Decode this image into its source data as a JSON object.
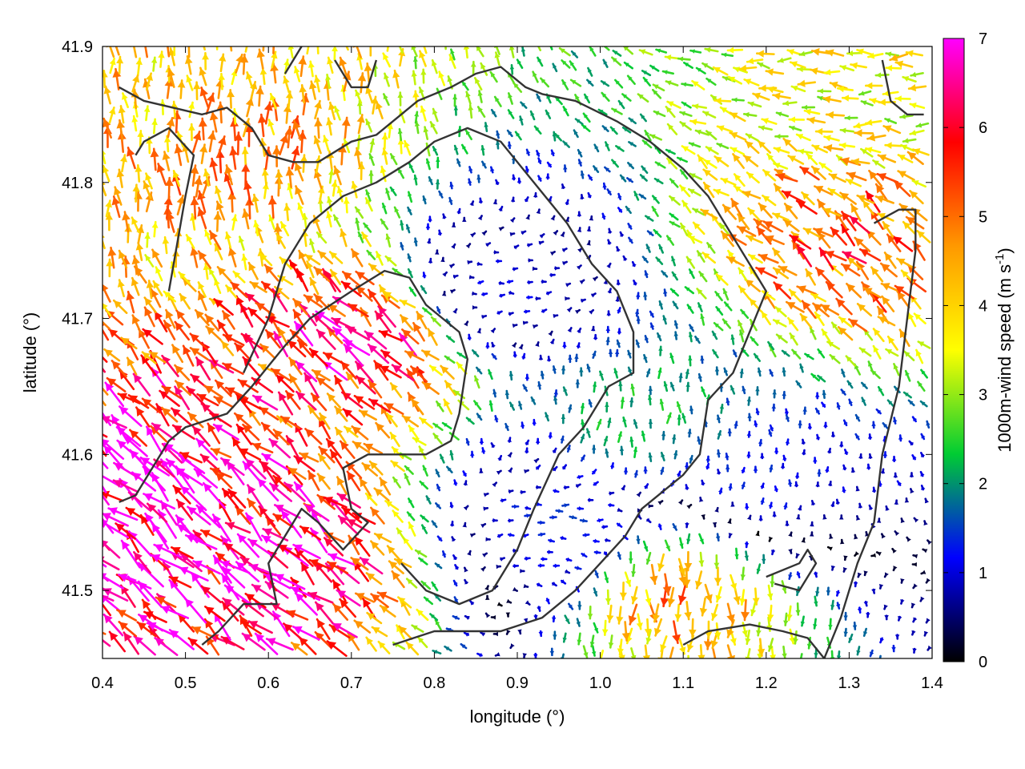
{
  "chart_data": {
    "type": "vector-field",
    "xlabel": "longitude (°)",
    "ylabel": "latitude (°)",
    "xlim": [
      0.4,
      1.4
    ],
    "ylim": [
      41.45,
      41.9
    ],
    "xticks": [
      "0.4",
      "0.5",
      "0.6",
      "0.7",
      "0.8",
      "0.9",
      "1.0",
      "1.1",
      "1.2",
      "1.3",
      "1.4"
    ],
    "yticks": [
      "41.5",
      "41.6",
      "41.7",
      "41.8",
      "41.9"
    ],
    "colorbar": {
      "label_main": "1000m-wind speed (m s",
      "label_sup": "-1",
      "label_end": ")",
      "range": [
        0,
        7
      ],
      "ticks": [
        "0",
        "1",
        "2",
        "3",
        "4",
        "5",
        "6",
        "7"
      ],
      "palette": [
        "#000000",
        "#0000ff",
        "#00cc33",
        "#ffff00",
        "#ff9900",
        "#ff0000",
        "#ff00ff"
      ]
    },
    "vector_grid": {
      "nx": 60,
      "ny": 38,
      "arrow_length_per_ms": 0.0055
    },
    "wind_field": {
      "description_regions": [
        {
          "lon": 0.47,
          "lat": 41.55,
          "speed": 7.0,
          "dir_to": "NW"
        },
        {
          "lon": 0.62,
          "lat": 41.52,
          "speed": 6.5,
          "dir_to": "NW"
        },
        {
          "lon": 0.72,
          "lat": 41.68,
          "speed": 6.0,
          "dir_to": "NW"
        },
        {
          "lon": 0.55,
          "lat": 41.82,
          "speed": 4.5,
          "dir_to": "N"
        },
        {
          "lon": 0.88,
          "lat": 41.72,
          "speed": 1.0,
          "dir_to": "E"
        },
        {
          "lon": 0.95,
          "lat": 41.55,
          "speed": 1.3,
          "dir_to": "E"
        },
        {
          "lon": 1.05,
          "lat": 41.62,
          "speed": 2.2,
          "dir_to": "N"
        },
        {
          "lon": 1.2,
          "lat": 41.58,
          "speed": 1.2,
          "dir_to": "N"
        },
        {
          "lon": 1.1,
          "lat": 41.5,
          "speed": 4.5,
          "dir_to": "S"
        },
        {
          "lon": 1.3,
          "lat": 41.75,
          "speed": 5.0,
          "dir_to": "NW"
        },
        {
          "lon": 1.35,
          "lat": 41.88,
          "speed": 3.5,
          "dir_to": "W"
        },
        {
          "lon": 0.45,
          "lat": 41.88,
          "speed": 4.0,
          "dir_to": "N"
        }
      ]
    },
    "contours": [
      [
        [
          0.42,
          41.565
        ],
        [
          0.44,
          41.57
        ],
        [
          0.48,
          41.61
        ],
        [
          0.5,
          41.62
        ],
        [
          0.55,
          41.63
        ],
        [
          0.58,
          41.65
        ],
        [
          0.62,
          41.68
        ],
        [
          0.65,
          41.7
        ],
        [
          0.7,
          41.72
        ],
        [
          0.74,
          41.735
        ],
        [
          0.77,
          41.73
        ],
        [
          0.79,
          41.71
        ],
        [
          0.83,
          41.69
        ],
        [
          0.84,
          41.67
        ],
        [
          0.83,
          41.63
        ],
        [
          0.82,
          41.61
        ],
        [
          0.79,
          41.6
        ],
        [
          0.72,
          41.6
        ],
        [
          0.69,
          41.59
        ],
        [
          0.7,
          41.56
        ],
        [
          0.72,
          41.55
        ],
        [
          0.69,
          41.53
        ],
        [
          0.66,
          41.55
        ],
        [
          0.64,
          41.56
        ],
        [
          0.6,
          41.52
        ],
        [
          0.61,
          41.49
        ],
        [
          0.57,
          41.49
        ],
        [
          0.54,
          41.47
        ],
        [
          0.52,
          41.46
        ]
      ],
      [
        [
          0.42,
          41.87
        ],
        [
          0.45,
          41.86
        ],
        [
          0.52,
          41.85
        ],
        [
          0.55,
          41.855
        ],
        [
          0.58,
          41.84
        ],
        [
          0.6,
          41.82
        ],
        [
          0.63,
          41.815
        ],
        [
          0.66,
          41.815
        ],
        [
          0.7,
          41.83
        ],
        [
          0.73,
          41.835
        ],
        [
          0.76,
          41.85
        ],
        [
          0.78,
          41.86
        ],
        [
          0.82,
          41.87
        ],
        [
          0.85,
          41.88
        ],
        [
          0.88,
          41.885
        ],
        [
          0.91,
          41.87
        ],
        [
          0.93,
          41.865
        ],
        [
          0.97,
          41.86
        ],
        [
          1.02,
          41.845
        ],
        [
          1.06,
          41.83
        ],
        [
          1.1,
          41.81
        ],
        [
          1.13,
          41.79
        ],
        [
          1.15,
          41.77
        ],
        [
          1.18,
          41.74
        ],
        [
          1.2,
          41.72
        ],
        [
          1.18,
          41.69
        ],
        [
          1.16,
          41.66
        ],
        [
          1.13,
          41.64
        ],
        [
          1.12,
          41.6
        ],
        [
          1.1,
          41.585
        ],
        [
          1.05,
          41.56
        ],
        [
          1.03,
          41.54
        ],
        [
          1.0,
          41.52
        ],
        [
          0.97,
          41.5
        ],
        [
          0.93,
          41.48
        ],
        [
          0.88,
          41.47
        ],
        [
          0.8,
          41.47
        ],
        [
          0.75,
          41.46
        ]
      ],
      [
        [
          0.48,
          41.72
        ],
        [
          0.5,
          41.79
        ],
        [
          0.51,
          41.82
        ],
        [
          0.48,
          41.84
        ],
        [
          0.45,
          41.83
        ],
        [
          0.44,
          41.82
        ]
      ],
      [
        [
          0.57,
          41.66
        ],
        [
          0.6,
          41.7
        ],
        [
          0.62,
          41.74
        ],
        [
          0.65,
          41.77
        ],
        [
          0.69,
          41.79
        ],
        [
          0.73,
          41.8
        ],
        [
          0.77,
          41.815
        ],
        [
          0.8,
          41.83
        ],
        [
          0.84,
          41.84
        ],
        [
          0.88,
          41.83
        ],
        [
          0.92,
          41.8
        ],
        [
          0.96,
          41.77
        ],
        [
          0.99,
          41.74
        ],
        [
          1.02,
          41.72
        ],
        [
          1.04,
          41.69
        ],
        [
          1.04,
          41.66
        ],
        [
          1.01,
          41.65
        ],
        [
          0.98,
          41.62
        ],
        [
          0.95,
          41.6
        ],
        [
          0.92,
          41.56
        ],
        [
          0.9,
          41.53
        ],
        [
          0.87,
          41.5
        ],
        [
          0.83,
          41.49
        ],
        [
          0.79,
          41.5
        ],
        [
          0.76,
          41.52
        ]
      ],
      [
        [
          1.27,
          41.45
        ],
        [
          1.29,
          41.48
        ],
        [
          1.31,
          41.52
        ],
        [
          1.33,
          41.55
        ],
        [
          1.34,
          41.6
        ],
        [
          1.36,
          41.65
        ],
        [
          1.37,
          41.7
        ],
        [
          1.38,
          41.75
        ],
        [
          1.38,
          41.78
        ],
        [
          1.36,
          41.78
        ],
        [
          1.33,
          41.77
        ]
      ],
      [
        [
          1.34,
          41.89
        ],
        [
          1.35,
          41.86
        ],
        [
          1.37,
          41.85
        ],
        [
          1.39,
          41.85
        ]
      ],
      [
        [
          1.2,
          41.51
        ],
        [
          1.24,
          41.52
        ],
        [
          1.25,
          41.53
        ],
        [
          1.26,
          41.52
        ],
        [
          1.24,
          41.5
        ],
        [
          1.21,
          41.505
        ]
      ],
      [
        [
          1.1,
          41.46
        ],
        [
          1.13,
          41.47
        ],
        [
          1.18,
          41.475
        ],
        [
          1.22,
          41.47
        ],
        [
          1.25,
          41.465
        ],
        [
          1.27,
          41.45
        ]
      ],
      [
        [
          0.62,
          41.88
        ],
        [
          0.64,
          41.9
        ]
      ],
      [
        [
          0.68,
          41.89
        ],
        [
          0.7,
          41.87
        ],
        [
          0.72,
          41.87
        ],
        [
          0.73,
          41.89
        ]
      ]
    ]
  }
}
